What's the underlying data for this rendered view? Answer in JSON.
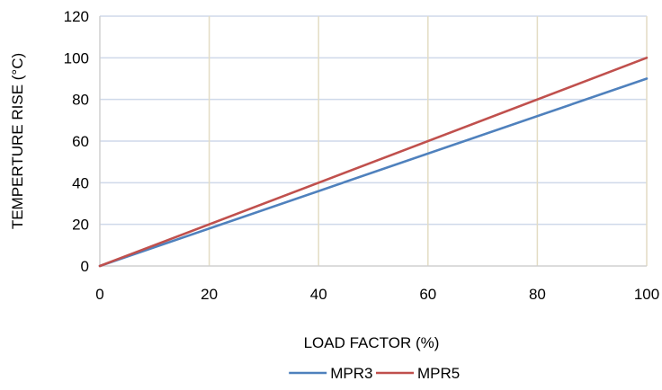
{
  "chart_data": {
    "type": "line",
    "title": "",
    "xlabel": "LOAD FACTOR (%)",
    "ylabel": "TEMPERTURE RISE (°C)",
    "xlim": [
      0,
      100
    ],
    "ylim": [
      0,
      120
    ],
    "x_ticks": [
      0,
      20,
      40,
      60,
      80,
      100
    ],
    "y_ticks": [
      0,
      20,
      40,
      60,
      80,
      100,
      120
    ],
    "x_grid": true,
    "y_grid": true,
    "legend_position": "bottom-center",
    "series": [
      {
        "name": "MPR3",
        "color": "#4f81bd",
        "x": [
          0,
          100
        ],
        "y": [
          0,
          90
        ]
      },
      {
        "name": "MPR5",
        "color": "#c0504d",
        "x": [
          0,
          100
        ],
        "y": [
          0,
          100
        ]
      }
    ],
    "colors": {
      "x_grid": "#e3dcc4",
      "y_grid": "#cfd9ea",
      "axis": "#d0d0d0"
    }
  }
}
